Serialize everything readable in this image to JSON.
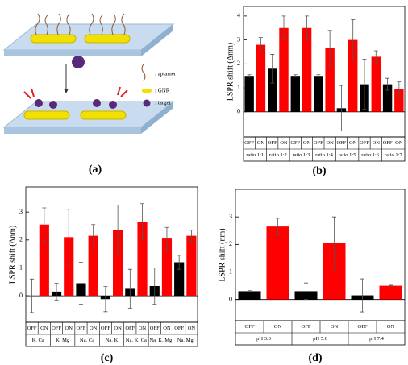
{
  "diagram": {
    "panel_label": "(a)",
    "labels": [
      ": aptamer",
      ": GNR",
      ": target"
    ]
  },
  "chart_data": [
    {
      "type": "bar",
      "panel_label": "(b)",
      "y_label": "LSPR shift (Δnm)",
      "categories": [
        "ratio 1:1",
        "ratio 1:2",
        "ratio 1:3",
        "ratio 1:4",
        "ratio 1:5",
        "ratio 1:6",
        "ratio 1:7"
      ],
      "series": [
        {
          "name": "OFF",
          "color": "#000000",
          "values": [
            1.5,
            1.8,
            1.5,
            1.5,
            0.15,
            1.15,
            1.15
          ],
          "errors": [
            0.05,
            0.6,
            0.05,
            0.05,
            0.95,
            1.05,
            0.25
          ]
        },
        {
          "name": "ON",
          "color": "#ff0000",
          "values": [
            2.8,
            3.5,
            3.5,
            2.65,
            3.0,
            2.3,
            0.95
          ],
          "errors": [
            0.3,
            0.5,
            0.5,
            0.75,
            0.85,
            0.25,
            0.3
          ]
        }
      ],
      "ylim": [
        -1.05,
        4.4
      ],
      "yticks": [
        0,
        1,
        2,
        3,
        4
      ]
    },
    {
      "type": "bar",
      "panel_label": "(c)",
      "y_label": "LSPR shift (Δnm)",
      "categories": [
        "K, Ca",
        "K, Mg",
        "Na, Ca",
        "Na, K",
        "Na, K, Ca",
        "Na, K, Mg",
        "Na, Mg"
      ],
      "series": [
        {
          "name": "OFF",
          "color": "#000000",
          "values": [
            0,
            0.15,
            0.45,
            -0.12,
            0.25,
            0.35,
            1.2
          ],
          "errors": [
            0.6,
            0.3,
            0.75,
            0.45,
            0.7,
            0.65,
            0.25
          ]
        },
        {
          "name": "ON",
          "color": "#ff0000",
          "values": [
            2.55,
            2.1,
            2.15,
            2.35,
            2.65,
            2.05,
            2.15
          ],
          "errors": [
            0.6,
            1.0,
            0.4,
            0.9,
            0.65,
            0.4,
            0.2
          ]
        }
      ],
      "ylim": [
        -0.95,
        3.9
      ],
      "yticks": [
        0,
        1,
        2,
        3
      ]
    },
    {
      "type": "bar",
      "panel_label": "(d)",
      "y_label": "LSPR shift (nm)",
      "categories": [
        "pH 3.0",
        "pH 5.6",
        "pH 7.4"
      ],
      "series": [
        {
          "name": "OFF",
          "color": "#000000",
          "values": [
            0.3,
            0.3,
            0.15
          ],
          "errors": [
            0.02,
            0.3,
            0.6
          ]
        },
        {
          "name": "ON",
          "color": "#ff0000",
          "values": [
            2.65,
            2.05,
            0.5
          ],
          "errors": [
            0.3,
            0.95,
            0.02
          ]
        }
      ],
      "ylim": [
        -0.77,
        4.0
      ],
      "yticks": [
        0,
        1,
        2,
        3
      ]
    }
  ]
}
